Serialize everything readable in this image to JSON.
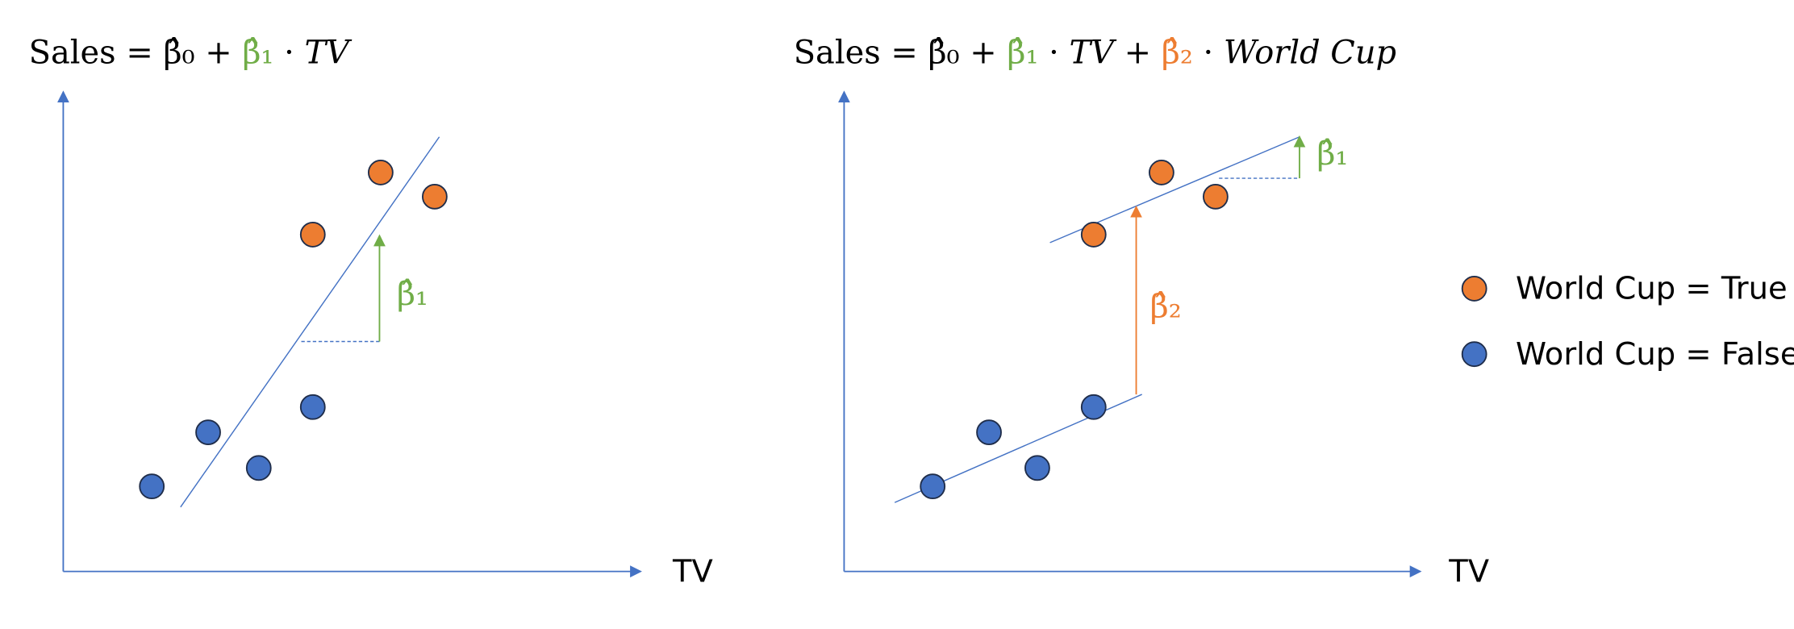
{
  "left": {
    "equation": [
      "Sales = ",
      "β̂₀",
      " + ",
      "β̂₁",
      " · ",
      "TV"
    ],
    "x_label": "TV",
    "slope_label": "β̂₁"
  },
  "right": {
    "equation": [
      "Sales = ",
      "β̂₀",
      " + ",
      "β̂₁",
      " · ",
      "TV",
      " + ",
      "β̂₂",
      " · ",
      "World Cup"
    ],
    "x_label": "TV",
    "slope_label": "β̂₁",
    "shift_label": "β̂₂"
  },
  "legend": [
    "World Cup = True",
    "World Cup = False"
  ]
}
